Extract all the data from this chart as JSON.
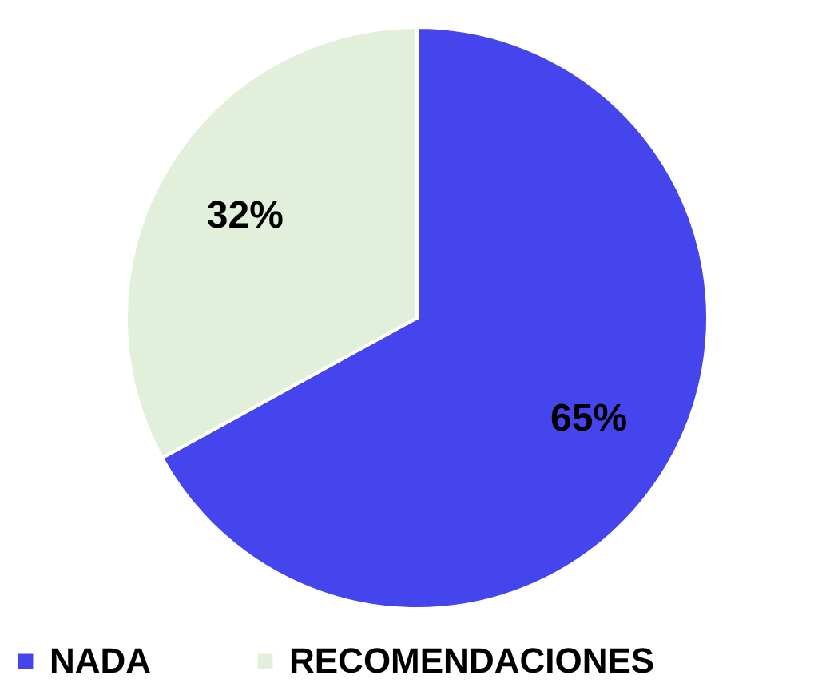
{
  "chart_data": {
    "type": "pie",
    "categories": [
      "NADA",
      "RECOMENDACIONES"
    ],
    "values": [
      65,
      32
    ],
    "value_labels": [
      "65%",
      "32%"
    ],
    "colors": [
      "#4545ee",
      "#e2efda"
    ],
    "legend": "bottom"
  }
}
